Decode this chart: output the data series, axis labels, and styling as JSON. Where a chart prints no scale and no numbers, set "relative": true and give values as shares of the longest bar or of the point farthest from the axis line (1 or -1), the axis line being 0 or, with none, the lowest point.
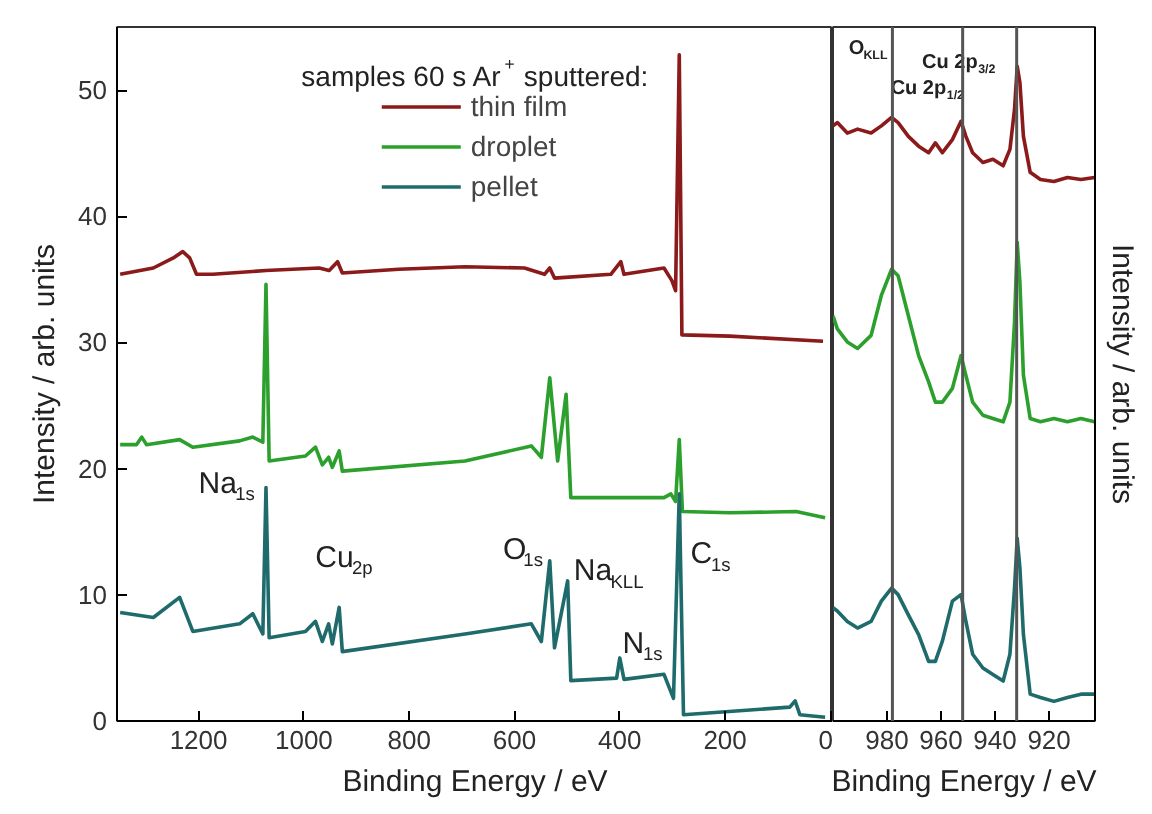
{
  "chart_data": [
    {
      "type": "line",
      "xlabel": "Binding Energy / eV",
      "ylabel": "Intensity / arb. units",
      "xlim": [
        1355,
        -5
      ],
      "ylim": [
        0,
        55
      ],
      "xticks": [
        0,
        200,
        400,
        600,
        800,
        1000,
        1200
      ],
      "yticks": [
        0,
        10,
        20,
        30,
        40,
        50
      ],
      "grid": false,
      "legend": "top",
      "legend_title": "samples 60 s Ar$^{+}$ sputtered:",
      "series": [
        {
          "name": "thin film",
          "color": "#8b1a1a",
          "x": [
            1349,
            1286,
            1248,
            1230,
            1217,
            1204,
            1173,
            1072,
            971,
            952,
            936,
            927,
            820,
            694,
            581,
            543,
            533,
            524,
            417,
            398,
            392,
            316,
            301,
            294,
            287,
            282,
            191,
            14
          ],
          "values": [
            35.4,
            35.9,
            36.7,
            37.2,
            36.7,
            35.4,
            35.4,
            35.7,
            35.9,
            35.7,
            36.4,
            35.5,
            35.8,
            36.0,
            35.9,
            35.4,
            35.9,
            35.1,
            35.4,
            36.4,
            35.4,
            35.9,
            34.9,
            34.1,
            52.8,
            30.6,
            30.5,
            30.1
          ]
        },
        {
          "name": "droplet",
          "color": "#2ca02c",
          "x": [
            1349,
            1318,
            1308,
            1299,
            1236,
            1211,
            1122,
            1097,
            1078,
            1072,
            1066,
            997,
            978,
            965,
            953,
            946,
            933,
            927,
            694,
            568,
            549,
            533,
            518,
            502,
            493,
            316,
            303,
            294,
            287,
            281,
            191,
            65,
            10
          ],
          "values": [
            21.9,
            21.9,
            22.5,
            21.9,
            22.3,
            21.7,
            22.2,
            22.5,
            22.1,
            34.6,
            20.6,
            21.0,
            21.7,
            20.3,
            20.9,
            20.1,
            21.4,
            19.8,
            20.6,
            21.8,
            20.9,
            27.2,
            20.6,
            25.9,
            17.7,
            17.7,
            18.0,
            17.4,
            22.3,
            16.6,
            16.5,
            16.6,
            16.1
          ]
        },
        {
          "name": "pellet",
          "color": "#1f6b6b",
          "x": [
            1349,
            1286,
            1236,
            1211,
            1122,
            1097,
            1078,
            1072,
            1066,
            997,
            978,
            965,
            953,
            946,
            933,
            927,
            694,
            568,
            549,
            533,
            524,
            499,
            493,
            406,
            400,
            392,
            316,
            298,
            287,
            279,
            77,
            67,
            58,
            10
          ],
          "values": [
            8.6,
            8.2,
            9.8,
            7.1,
            7.7,
            8.5,
            6.9,
            18.5,
            6.6,
            7.1,
            7.9,
            6.3,
            7.7,
            6.1,
            9.0,
            5.5,
            6.9,
            7.7,
            6.3,
            12.7,
            5.8,
            11.1,
            3.2,
            3.4,
            5.0,
            3.3,
            3.7,
            1.8,
            18.0,
            0.5,
            1.1,
            1.6,
            0.5,
            0.3
          ]
        }
      ],
      "annotations": [
        "Na$_{1s}$",
        "Cu$_{2p}$",
        "O$_{1s}$",
        "Na$_{KLL}$",
        "N$_{1s}$",
        "C$_{1s}$"
      ]
    },
    {
      "type": "line",
      "relative": true,
      "xlabel": "Binding Energy / eV",
      "ylabel": "Intensity / arb. units",
      "xlim": [
        1000,
        903
      ],
      "xticks": [
        980,
        960,
        940,
        920
      ],
      "tick_labels": "x",
      "grid": false,
      "series": [
        {
          "color": "#8b1a1a",
          "x": [
            1000,
            998.4,
            994.7,
            990.9,
            985.9,
            982.1,
            978.3,
            975.9,
            972.1,
            968.3,
            964.6,
            962.1,
            959.5,
            955.8,
            952.6,
            950.8,
            948.3,
            944.5,
            940.8,
            937.0,
            934.5,
            932.8,
            931.8,
            930.8,
            929.5,
            927.0,
            923.2,
            918.2,
            913.2,
            908.2,
            903.2
          ],
          "values": [
            0.909,
            0.914,
            0.898,
            0.904,
            0.898,
            0.909,
            0.922,
            0.914,
            0.893,
            0.878,
            0.868,
            0.883,
            0.868,
            0.888,
            0.916,
            0.893,
            0.868,
            0.853,
            0.858,
            0.848,
            0.873,
            0.934,
            1.0,
            0.975,
            0.893,
            0.838,
            0.827,
            0.824,
            0.83,
            0.827,
            0.83
          ]
        },
        {
          "color": "#2ca02c",
          "x": [
            1000,
            998.4,
            994.7,
            990.9,
            985.9,
            982.1,
            978.3,
            975.9,
            972.1,
            968.3,
            964.6,
            962.1,
            959.5,
            955.8,
            952.6,
            950.8,
            948.3,
            944.5,
            940.8,
            937.0,
            934.5,
            932.8,
            931.8,
            930.8,
            929.5,
            927.0,
            923.2,
            918.2,
            913.2,
            908.2,
            903.2
          ],
          "values": [
            0.619,
            0.599,
            0.579,
            0.569,
            0.589,
            0.65,
            0.69,
            0.68,
            0.619,
            0.558,
            0.518,
            0.487,
            0.487,
            0.508,
            0.558,
            0.528,
            0.487,
            0.467,
            0.462,
            0.457,
            0.487,
            0.609,
            0.731,
            0.67,
            0.528,
            0.462,
            0.457,
            0.462,
            0.457,
            0.462,
            0.457
          ]
        },
        {
          "color": "#1f6b6b",
          "x": [
            1000,
            998.4,
            994.7,
            990.9,
            985.9,
            982.1,
            978.3,
            975.9,
            972.1,
            968.3,
            964.6,
            962.1,
            959.5,
            955.8,
            952.6,
            950.8,
            948.3,
            944.5,
            940.8,
            937.0,
            934.5,
            932.8,
            931.8,
            930.8,
            929.5,
            927.0,
            923.2,
            918.2,
            913.2,
            908.2,
            903.2
          ],
          "values": [
            0.173,
            0.168,
            0.152,
            0.142,
            0.152,
            0.183,
            0.203,
            0.193,
            0.162,
            0.132,
            0.091,
            0.091,
            0.122,
            0.183,
            0.193,
            0.152,
            0.102,
            0.081,
            0.071,
            0.061,
            0.102,
            0.203,
            0.279,
            0.234,
            0.132,
            0.041,
            0.036,
            0.03,
            0.036,
            0.041,
            0.041
          ]
        }
      ],
      "ref_lines": [
        {
          "axis": "x",
          "value": 978,
          "color": "#555555"
        },
        {
          "axis": "x",
          "value": 952,
          "color": "#555555"
        },
        {
          "axis": "x",
          "value": 932,
          "color": "#555555"
        }
      ],
      "annotations": [
        "O$_{KLL}$",
        "Cu 2p$_{3/2}$",
        "Cu 2p$_{1/2}$"
      ]
    }
  ]
}
